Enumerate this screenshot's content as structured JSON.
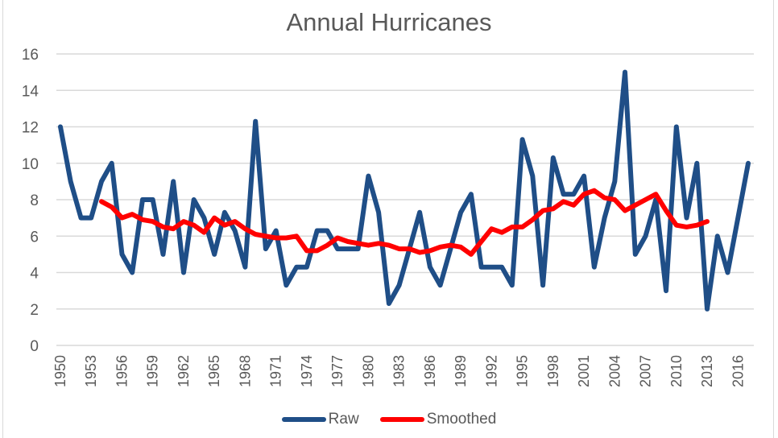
{
  "chart_data": {
    "type": "line",
    "title": "Annual Hurricanes",
    "xlabel": "",
    "ylabel": "",
    "ylim": [
      0,
      16
    ],
    "yticks": [
      0,
      2,
      4,
      6,
      8,
      10,
      12,
      14,
      16
    ],
    "ytick_labels": [
      "0",
      "2",
      "4",
      "6",
      "8",
      "10",
      "12",
      "14",
      "16"
    ],
    "xlim": [
      1950,
      2017
    ],
    "xtick_labels": [
      "1950",
      "1953",
      "1956",
      "1959",
      "1962",
      "1965",
      "1968",
      "1971",
      "1974",
      "1977",
      "1980",
      "1983",
      "1986",
      "1989",
      "1992",
      "1995",
      "1998",
      "2001",
      "2004",
      "2007",
      "2010",
      "2013",
      "2016"
    ],
    "grid": true,
    "legend_position": "bottom",
    "series": [
      {
        "name": "Raw",
        "color": "#1f4e87",
        "x_start": 1950,
        "values": [
          12,
          9,
          7,
          7,
          9,
          10,
          5,
          4,
          8,
          8,
          5,
          9,
          4,
          8,
          7,
          5,
          7.3,
          6.3,
          4.3,
          12.3,
          5.3,
          6.3,
          3.3,
          4.3,
          4.3,
          6.3,
          6.3,
          5.3,
          5.3,
          5.3,
          9.3,
          7.3,
          2.3,
          3.3,
          5.3,
          7.3,
          4.3,
          3.3,
          5.3,
          7.3,
          8.3,
          4.3,
          4.3,
          4.3,
          3.3,
          11.3,
          9.3,
          3.3,
          10.3,
          8.3,
          8.3,
          9.3,
          4.3,
          7,
          9,
          15,
          5,
          6,
          8,
          3,
          12,
          7,
          10,
          2,
          6,
          4,
          7,
          10
        ]
      },
      {
        "name": "Smoothed",
        "color": "#ff0000",
        "x_start": 1954,
        "values": [
          7.9,
          7.6,
          7.0,
          7.2,
          6.9,
          6.8,
          6.5,
          6.4,
          6.8,
          6.6,
          6.2,
          7.0,
          6.6,
          6.8,
          6.4,
          6.1,
          6.0,
          5.9,
          5.9,
          6.0,
          5.2,
          5.2,
          5.5,
          5.9,
          5.7,
          5.6,
          5.5,
          5.6,
          5.5,
          5.3,
          5.3,
          5.1,
          5.2,
          5.4,
          5.5,
          5.4,
          5.0,
          5.7,
          6.4,
          6.2,
          6.5,
          6.5,
          6.9,
          7.4,
          7.5,
          7.9,
          7.7,
          8.3,
          8.5,
          8.1,
          8.0,
          7.4,
          7.7,
          8.0,
          8.3,
          7.4,
          6.6,
          6.5,
          6.6,
          6.8
        ]
      }
    ]
  },
  "legend": {
    "items": [
      {
        "label": "Raw",
        "color": "#1f4e87"
      },
      {
        "label": "Smoothed",
        "color": "#ff0000"
      }
    ]
  }
}
